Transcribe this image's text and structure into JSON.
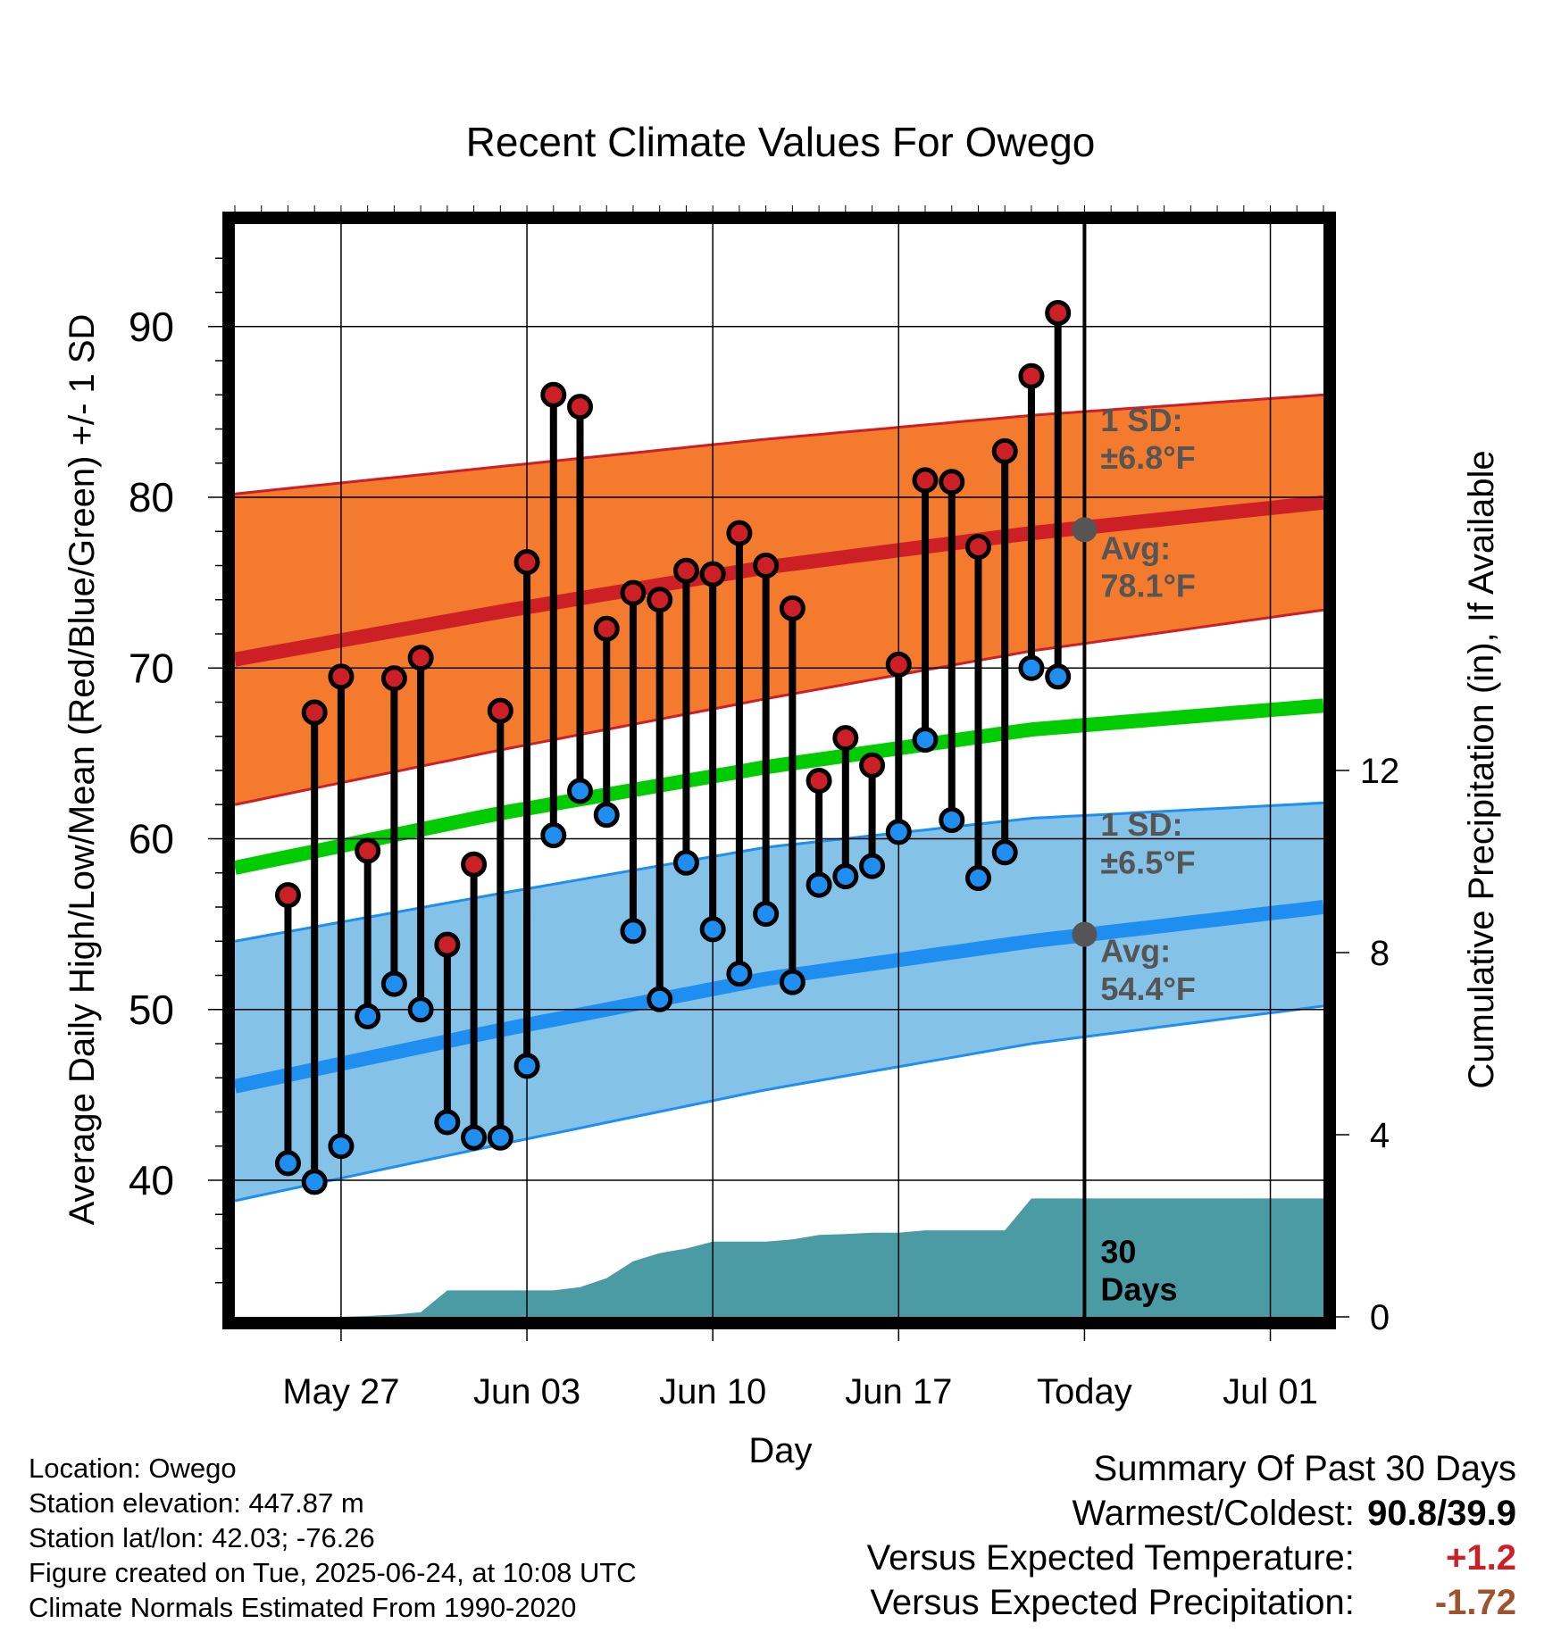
{
  "chart_data": {
    "type": "line",
    "title": "Recent Climate Values For Owego",
    "xlabel": "Day",
    "ylabel": "Average Daily High/Low/Mean (Red/Blue/Green) +/- 1 SD",
    "y2label": "Cumulative Precipitation (in), If Available",
    "ylim": [
      32,
      96
    ],
    "y2lim": [
      0,
      24
    ],
    "yticks": [
      40,
      50,
      60,
      70,
      80,
      90
    ],
    "y2ticks": [
      0,
      4,
      8,
      12
    ],
    "xlim": [
      "2025-05-23",
      "2025-07-03"
    ],
    "xticks": [
      {
        "date": "2025-05-27",
        "label": "May 27"
      },
      {
        "date": "2025-06-03",
        "label": "Jun 03"
      },
      {
        "date": "2025-06-10",
        "label": "Jun 10"
      },
      {
        "date": "2025-06-17",
        "label": "Jun 17"
      },
      {
        "date": "2025-06-24",
        "label": "Today"
      },
      {
        "date": "2025-07-01",
        "label": "Jul 01"
      }
    ],
    "grid": true,
    "today": "2025-06-24",
    "normals": {
      "dates": [
        "2025-05-23",
        "2025-06-02",
        "2025-06-12",
        "2025-06-22",
        "2025-07-03"
      ],
      "high_avg": [
        70.5,
        73.3,
        75.9,
        77.9,
        79.7
      ],
      "high_plus_sd": [
        80.2,
        81.8,
        83.4,
        84.8,
        86.0
      ],
      "high_minus_sd": [
        62.0,
        65.2,
        68.2,
        71.0,
        73.4
      ],
      "mean_avg": [
        58.3,
        61.5,
        64.2,
        66.4,
        67.8
      ],
      "low_avg": [
        45.5,
        48.8,
        51.8,
        54.0,
        56.0
      ],
      "low_plus_sd": [
        54.0,
        56.8,
        59.5,
        61.2,
        62.1
      ],
      "low_minus_sd": [
        38.8,
        42.1,
        45.3,
        48.0,
        50.2
      ]
    },
    "series": [
      {
        "name": "High",
        "color": "#cc2026",
        "dates": [
          "2025-05-25",
          "2025-05-26",
          "2025-05-27",
          "2025-05-28",
          "2025-05-29",
          "2025-05-30",
          "2025-05-31",
          "2025-06-01",
          "2025-06-02",
          "2025-06-03",
          "2025-06-04",
          "2025-06-05",
          "2025-06-06",
          "2025-06-07",
          "2025-06-08",
          "2025-06-09",
          "2025-06-10",
          "2025-06-11",
          "2025-06-12",
          "2025-06-13",
          "2025-06-14",
          "2025-06-15",
          "2025-06-16",
          "2025-06-17",
          "2025-06-18",
          "2025-06-19",
          "2025-06-20",
          "2025-06-21",
          "2025-06-22",
          "2025-06-23"
        ],
        "values": [
          56.7,
          67.4,
          69.5,
          59.3,
          69.4,
          70.6,
          53.8,
          58.5,
          67.5,
          76.2,
          86.0,
          85.3,
          72.3,
          74.4,
          74.0,
          75.7,
          75.5,
          77.9,
          76.0,
          73.5,
          63.4,
          65.9,
          64.3,
          70.2,
          81.0,
          80.9,
          77.1,
          82.7,
          87.1,
          90.8
        ]
      },
      {
        "name": "Low",
        "color": "#1e8ff0",
        "dates": [
          "2025-05-25",
          "2025-05-26",
          "2025-05-27",
          "2025-05-28",
          "2025-05-29",
          "2025-05-30",
          "2025-05-31",
          "2025-06-01",
          "2025-06-02",
          "2025-06-03",
          "2025-06-04",
          "2025-06-05",
          "2025-06-06",
          "2025-06-07",
          "2025-06-08",
          "2025-06-09",
          "2025-06-10",
          "2025-06-11",
          "2025-06-12",
          "2025-06-13",
          "2025-06-14",
          "2025-06-15",
          "2025-06-16",
          "2025-06-17",
          "2025-06-18",
          "2025-06-19",
          "2025-06-20",
          "2025-06-21",
          "2025-06-22",
          "2025-06-23"
        ],
        "values": [
          41.0,
          39.9,
          42.0,
          49.6,
          51.5,
          50.0,
          43.4,
          42.5,
          42.5,
          46.7,
          60.2,
          62.8,
          61.4,
          54.6,
          50.6,
          58.6,
          54.7,
          52.1,
          55.6,
          51.6,
          57.3,
          57.8,
          58.4,
          60.4,
          65.8,
          61.1,
          57.7,
          59.2,
          70.0,
          69.5
        ]
      }
    ],
    "precip": {
      "name": "Cumulative Precipitation",
      "color": "#4a9ba3",
      "dates": [
        "2025-05-24",
        "2025-05-25",
        "2025-05-26",
        "2025-05-27",
        "2025-05-28",
        "2025-05-29",
        "2025-05-30",
        "2025-05-31",
        "2025-06-01",
        "2025-06-02",
        "2025-06-03",
        "2025-06-04",
        "2025-06-05",
        "2025-06-06",
        "2025-06-07",
        "2025-06-08",
        "2025-06-09",
        "2025-06-10",
        "2025-06-11",
        "2025-06-12",
        "2025-06-13",
        "2025-06-14",
        "2025-06-15",
        "2025-06-16",
        "2025-06-17",
        "2025-06-18",
        "2025-06-19",
        "2025-06-20",
        "2025-06-21",
        "2025-06-22",
        "2025-06-23",
        "2025-07-03"
      ],
      "values": [
        0.0,
        0.0,
        0.0,
        0.0,
        0.02,
        0.05,
        0.1,
        0.58,
        0.58,
        0.58,
        0.58,
        0.58,
        0.65,
        0.85,
        1.22,
        1.4,
        1.5,
        1.65,
        1.65,
        1.65,
        1.7,
        1.8,
        1.82,
        1.85,
        1.85,
        1.9,
        1.9,
        1.9,
        1.9,
        2.6,
        2.6,
        2.6
      ]
    },
    "annotations": {
      "high_sd_label": "1 SD:",
      "high_sd_value": "±6.8°F",
      "high_avg_label": "Avg:",
      "high_avg_value": "78.1°F",
      "high_avg_today": 78.1,
      "low_sd_label": "1 SD:",
      "low_sd_value": "±6.5°F",
      "low_avg_label": "Avg:",
      "low_avg_value": "54.4°F",
      "low_avg_today": 54.4,
      "days_label_1": "30",
      "days_label_2": "Days"
    }
  },
  "meta": {
    "location": "Location: Owego",
    "elevation": "Station elevation: 447.87 m",
    "latlon": "Station lat/lon: 42.03; -76.26",
    "created": "Figure created on Tue, 2025-06-24, at 10:08 UTC",
    "normals": "Climate Normals Estimated From 1990-2020"
  },
  "summary": {
    "title": "Summary Of Past 30 Days",
    "warmest_label": "Warmest/Coldest:",
    "warmest_value": "90.8/39.9",
    "temp_label": "Versus Expected Temperature:",
    "temp_value": "+1.2",
    "temp_color": "#cc2026",
    "precip_label": "Versus Expected Precipitation:",
    "precip_value": "-1.72",
    "precip_color": "#a0522d"
  },
  "colors": {
    "high_band": "#f47a2e",
    "high_line": "#cc2026",
    "mean_line": "#00cc00",
    "low_band": "#84c2e8",
    "low_line": "#1e8ff0",
    "precip_fill": "#4a9ba3",
    "annotation_text": "#555555"
  }
}
